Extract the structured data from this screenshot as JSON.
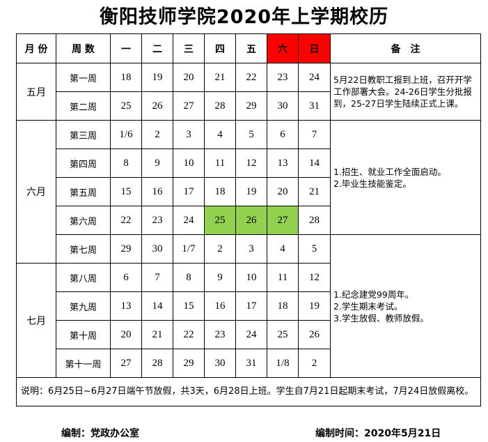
{
  "title": "衡阳技师学院2020年上学期校历",
  "headers": [
    "月 份",
    "周 数",
    "一",
    "二",
    "三",
    "四",
    "五",
    "六",
    "日",
    "备　注"
  ],
  "colors": {
    "weekend_header": "#ff0000",
    "holiday_highlight": "#92d050"
  },
  "months": [
    "五月",
    "六月",
    "七月"
  ],
  "weeks": [
    {
      "label": "第一周",
      "days": [
        "18",
        "19",
        "20",
        "21",
        "22",
        "23",
        "24"
      ]
    },
    {
      "label": "第二周",
      "days": [
        "25",
        "26",
        "27",
        "28",
        "29",
        "30",
        "31"
      ]
    },
    {
      "label": "第三周",
      "days": [
        "1/6",
        "2",
        "3",
        "4",
        "5",
        "6",
        "7"
      ]
    },
    {
      "label": "第四周",
      "days": [
        "8",
        "9",
        "10",
        "11",
        "12",
        "13",
        "14"
      ]
    },
    {
      "label": "第五周",
      "days": [
        "15",
        "16",
        "17",
        "18",
        "19",
        "20",
        "21"
      ]
    },
    {
      "label": "第六周",
      "days": [
        "22",
        "23",
        "24",
        "25",
        "26",
        "27",
        "28"
      ]
    },
    {
      "label": "第七周",
      "days": [
        "29",
        "30",
        "1/7",
        "2",
        "3",
        "4",
        "5"
      ]
    },
    {
      "label": "第八周",
      "days": [
        "6",
        "7",
        "8",
        "9",
        "10",
        "11",
        "12"
      ]
    },
    {
      "label": "第九周",
      "days": [
        "13",
        "14",
        "15",
        "16",
        "17",
        "18",
        "19"
      ]
    },
    {
      "label": "第十周",
      "days": [
        "20",
        "21",
        "22",
        "23",
        "24",
        "25",
        "26"
      ]
    },
    {
      "label": "第十一周",
      "days": [
        "27",
        "28",
        "29",
        "30",
        "31",
        "1/8",
        "2"
      ]
    }
  ],
  "notes": [
    [
      "5月22日教职工报到上班，召开开学工作部署大会。24-26日学生分批报到，25-27日学生陆续正式上课。"
    ],
    [
      "1.招生、就业工作全面启动。",
      "2.毕业生技能鉴定。"
    ],
    [
      "1.纪念建党99周年。",
      "2.学生期末考试。",
      "3.学生放假、教师放假。"
    ]
  ],
  "explanation": "说明：6月25日~6月27日端午节放假，共3天，6月28日上班。学生自7月21日起期末考试，7月24日放假离校。",
  "footer": {
    "compiler": "编制：党政办公室",
    "date": "编制时间：2020年5月21日"
  }
}
